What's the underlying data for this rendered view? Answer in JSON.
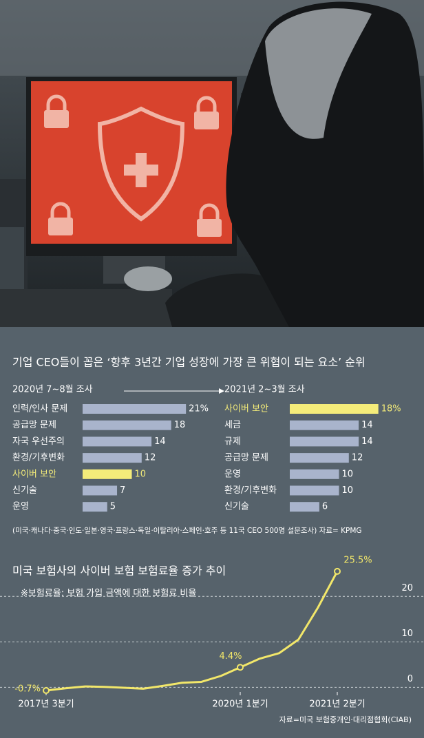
{
  "header": {
    "title": "기업 CEO들이 꼽은 ‘향후 3년간 기업 성장에 가장 큰 위협이 되는 요소’ 순위"
  },
  "chart_data": [
    {
      "type": "hbar",
      "subtitle": "2020년 7~8월 조사",
      "categories": [
        "인력/인사 문제",
        "공급망 문제",
        "자국 우선주의",
        "환경/기후변화",
        "사이버 보안",
        "신기술",
        "운영"
      ],
      "values": [
        21,
        18,
        14,
        12,
        10,
        7,
        5
      ],
      "value_labels": [
        "21%",
        "18",
        "14",
        "12",
        "10",
        "7",
        "5"
      ],
      "colors": [
        "#a9b4cc",
        "#a9b4cc",
        "#a9b4cc",
        "#a9b4cc",
        "#f4ec7a",
        "#a9b4cc",
        "#a9b4cc"
      ],
      "label_colors": [
        "#ffffff",
        "#ffffff",
        "#ffffff",
        "#ffffff",
        "#f4ec7a",
        "#ffffff",
        "#ffffff"
      ]
    },
    {
      "type": "hbar",
      "subtitle": "2021년 2~3월 조사",
      "categories": [
        "사이버 보안",
        "세금",
        "규제",
        "공급망 문제",
        "운영",
        "환경/기후변화",
        "신기술"
      ],
      "values": [
        18,
        14,
        14,
        12,
        10,
        10,
        6
      ],
      "value_labels": [
        "18%",
        "14",
        "14",
        "12",
        "10",
        "10",
        "6"
      ],
      "colors": [
        "#f4ec7a",
        "#a9b4cc",
        "#a9b4cc",
        "#a9b4cc",
        "#a9b4cc",
        "#a9b4cc",
        "#a9b4cc"
      ],
      "label_colors": [
        "#f4ec7a",
        "#ffffff",
        "#ffffff",
        "#ffffff",
        "#ffffff",
        "#ffffff",
        "#ffffff"
      ],
      "note": "(미국·캐나다·중국·인도·일본·영국·프랑스·독일·이탈리아·스페인·호주 등 11국 CEO 500명 설문조사)  자료= KPMG"
    },
    {
      "type": "line",
      "title": "미국 보험사의 사이버 보험 보험료율 증가 추이",
      "subtitle": "※보험료율: 보험 가입 금액에 대한 보험료 비율",
      "source": "자료=미국 보험중개인·대리점협회(CIAB)",
      "categories": [
        "2017년 3분기",
        null,
        null,
        null,
        null,
        null,
        null,
        null,
        null,
        null,
        "2020년 1분기",
        null,
        null,
        null,
        null,
        "2021년 2분기"
      ],
      "values": [
        -0.7,
        -0.2,
        0.2,
        0.1,
        -0.1,
        -0.3,
        0.3,
        1.0,
        1.2,
        2.5,
        4.4,
        6.3,
        7.5,
        10.5,
        17.5,
        25.5
      ],
      "value_labels": [
        "-0.7%",
        null,
        null,
        null,
        null,
        null,
        null,
        null,
        null,
        null,
        "4.4%",
        null,
        null,
        null,
        null,
        "25.5%"
      ],
      "color": "#f2e76a",
      "ylim": [
        -1,
        27
      ],
      "yticks": [
        0,
        10,
        20
      ],
      "grid": true
    }
  ]
}
